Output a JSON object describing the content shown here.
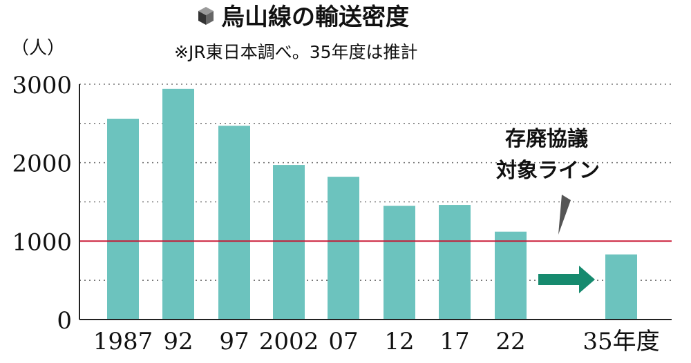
{
  "chart_data": {
    "type": "bar",
    "title": "烏山線の輸送密度",
    "subtitle": "※JR東日本調べ。35年度は推計",
    "unit_label": "（人）",
    "categories": [
      "1987",
      "92",
      "97",
      "2002",
      "07",
      "12",
      "17",
      "22",
      "35年度"
    ],
    "values": [
      2560,
      2940,
      2470,
      1970,
      1820,
      1450,
      1460,
      1120,
      830
    ],
    "ylim": [
      0,
      3000
    ],
    "yticks": [
      0,
      1000,
      2000,
      3000
    ],
    "grid": true,
    "threshold": {
      "value": 1000,
      "label_line1": "存廃協議",
      "label_line2": "対象ライン",
      "color": "#c8102e"
    },
    "colors": {
      "bar": "#6cc3be",
      "arrow": "#168a6e",
      "grid": "#777777",
      "axis": "#222222",
      "title_icon": "#333333"
    }
  }
}
